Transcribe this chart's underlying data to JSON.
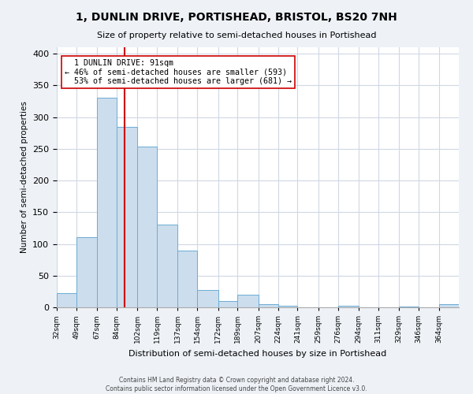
{
  "title": "1, DUNLIN DRIVE, PORTISHEAD, BRISTOL, BS20 7NH",
  "subtitle": "Size of property relative to semi-detached houses in Portishead",
  "xlabel": "Distribution of semi-detached houses by size in Portishead",
  "ylabel": "Number of semi-detached properties",
  "bin_edges": [
    32,
    49,
    67,
    84,
    102,
    119,
    137,
    154,
    172,
    189,
    207,
    224,
    241,
    259,
    276,
    294,
    311,
    329,
    346,
    364,
    381
  ],
  "bin_heights": [
    22,
    110,
    330,
    285,
    253,
    131,
    90,
    27,
    10,
    20,
    5,
    2,
    0,
    0,
    2,
    0,
    0,
    1,
    0,
    5
  ],
  "bar_color": "#ccdded",
  "bar_edge_color": "#6aadd5",
  "property_size": 91,
  "property_label": "1 DUNLIN DRIVE: 91sqm",
  "pct_smaller": 46,
  "n_smaller": 593,
  "pct_larger": 53,
  "n_larger": 681,
  "vline_color": "#cc0000",
  "annotation_box_edge_color": "#cc0000",
  "ylim": [
    0,
    410
  ],
  "yticks": [
    0,
    50,
    100,
    150,
    200,
    250,
    300,
    350,
    400
  ],
  "footer1": "Contains HM Land Registry data © Crown copyright and database right 2024.",
  "footer2": "Contains public sector information licensed under the Open Government Licence v3.0.",
  "background_color": "#eef2f7",
  "plot_bg_color": "#ffffff",
  "grid_color": "#d0d8e4"
}
